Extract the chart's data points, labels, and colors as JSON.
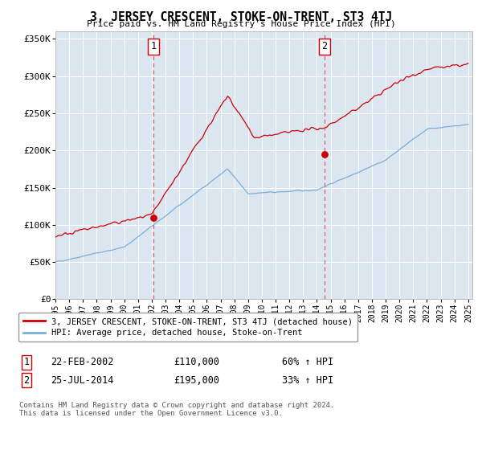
{
  "title": "3, JERSEY CRESCENT, STOKE-ON-TRENT, ST3 4TJ",
  "subtitle": "Price paid vs. HM Land Registry's House Price Index (HPI)",
  "ylim": [
    0,
    360000
  ],
  "yticks": [
    0,
    50000,
    100000,
    150000,
    200000,
    250000,
    300000,
    350000
  ],
  "ytick_labels": [
    "£0",
    "£50K",
    "£100K",
    "£150K",
    "£200K",
    "£250K",
    "£300K",
    "£350K"
  ],
  "background_color": "#dce6f1",
  "sale1_date": 2002.13,
  "sale1_price": 110000,
  "sale1_label": "1",
  "sale2_date": 2014.56,
  "sale2_price": 195000,
  "sale2_label": "2",
  "legend_line1": "3, JERSEY CRESCENT, STOKE-ON-TRENT, ST3 4TJ (detached house)",
  "legend_line2": "HPI: Average price, detached house, Stoke-on-Trent",
  "annotation1_date": "22-FEB-2002",
  "annotation1_price": "£110,000",
  "annotation1_hpi": "60% ↑ HPI",
  "annotation2_date": "25-JUL-2014",
  "annotation2_price": "£195,000",
  "annotation2_hpi": "33% ↑ HPI",
  "footer": "Contains HM Land Registry data © Crown copyright and database right 2024.\nThis data is licensed under the Open Government Licence v3.0.",
  "line_color_red": "#cc0000",
  "line_color_blue": "#7aaed6",
  "grid_color": "#ffffff",
  "vline_color": "#e06060"
}
